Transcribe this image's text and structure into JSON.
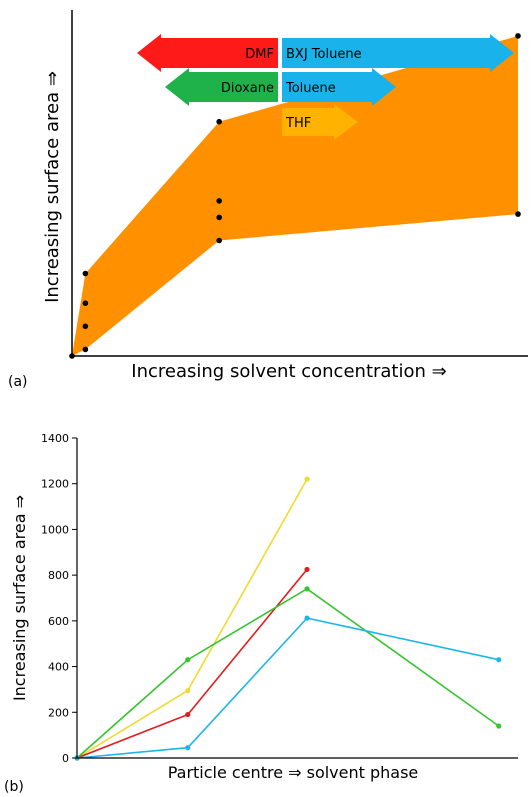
{
  "chart_data": [
    {
      "type": "area",
      "panel_label": "(a)",
      "xlabel": "Increasing solvent concentration ⇒",
      "ylabel": "Increasing surface area ⇒",
      "band_upper": [
        [
          0,
          0
        ],
        [
          0.03,
          0.25
        ],
        [
          0.33,
          0.71
        ],
        [
          1,
          0.97
        ]
      ],
      "band_lower": [
        [
          0,
          0
        ],
        [
          0.03,
          0.02
        ],
        [
          0.33,
          0.35
        ],
        [
          1,
          0.43
        ]
      ],
      "points": [
        [
          0,
          0
        ],
        [
          0.03,
          0.25
        ],
        [
          0.03,
          0.16
        ],
        [
          0.03,
          0.09
        ],
        [
          0.03,
          0.02
        ],
        [
          0.33,
          0.71
        ],
        [
          0.33,
          0.47
        ],
        [
          0.33,
          0.42
        ],
        [
          0.33,
          0.35
        ],
        [
          1,
          0.97
        ],
        [
          1,
          0.43
        ]
      ],
      "band_color": "#ff9100",
      "arrows": [
        {
          "label": "DMF",
          "direction": "left",
          "color": "#ff1a1a"
        },
        {
          "label": "BXJ Toluene",
          "direction": "right",
          "color": "#19b2ea"
        },
        {
          "label": "Dioxane",
          "direction": "left",
          "color": "#1fb24a"
        },
        {
          "label": "Toluene",
          "direction": "right",
          "color": "#19b2ea"
        },
        {
          "label": "THF",
          "direction": "right",
          "color": "#ffb300"
        }
      ]
    },
    {
      "type": "line",
      "panel_label": "(b)",
      "xlabel": "Particle centre ⇒ solvent phase",
      "ylabel": "Increasing surface area ⇒",
      "ylim": [
        0,
        1400
      ],
      "yticks": [
        "0",
        "200",
        "400",
        "600",
        "800",
        "1000",
        "1200",
        "1400"
      ],
      "series": [
        {
          "color": "#f2d930",
          "points": [
            [
              0,
              0
            ],
            [
              0.26,
              295
            ],
            [
              0.54,
              1220
            ]
          ]
        },
        {
          "color": "#e21b1b",
          "points": [
            [
              0,
              0
            ],
            [
              0.26,
              190
            ],
            [
              0.54,
              825
            ]
          ]
        },
        {
          "color": "#37c42f",
          "points": [
            [
              0,
              0
            ],
            [
              0.26,
              430
            ],
            [
              0.54,
              740
            ],
            [
              0.99,
              140
            ]
          ]
        },
        {
          "color": "#1eb6e8",
          "points": [
            [
              0,
              0
            ],
            [
              0.26,
              45
            ],
            [
              0.54,
              612
            ],
            [
              0.99,
              430
            ]
          ]
        }
      ]
    }
  ]
}
